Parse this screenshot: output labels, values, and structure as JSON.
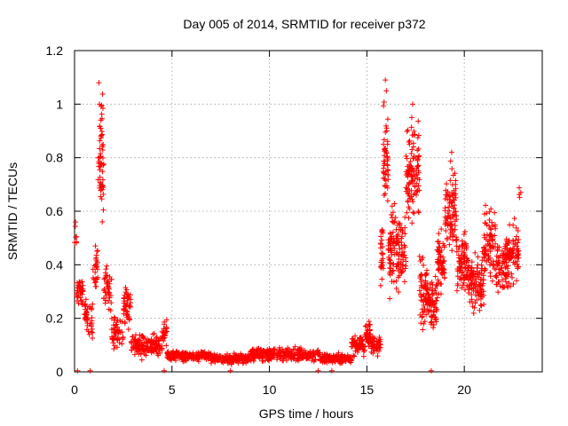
{
  "chart_data": {
    "type": "scatter",
    "title": "Day 005 of 2014, SRMTID for receiver p372",
    "xlabel": "GPS time / hours",
    "ylabel": "SRMTID / TECUs",
    "xlim": [
      0,
      24
    ],
    "ylim": [
      0,
      1.2
    ],
    "xticks": [
      0,
      5,
      10,
      15,
      20
    ],
    "yticks": [
      0,
      0.2,
      0.4,
      0.6,
      0.8,
      1,
      1.2
    ],
    "ytick_labels": [
      "0",
      "0.2",
      "0.4",
      "0.6",
      "0.8",
      "1",
      "1.2"
    ],
    "grid": true,
    "legend": "none",
    "marker": "+",
    "series_color": "#ff0000",
    "segments": [
      {
        "t0": 0.0,
        "t1": 0.1,
        "count": 6,
        "base": 0.5,
        "spread": 0.08
      },
      {
        "t0": 0.1,
        "t1": 0.45,
        "count": 40,
        "base": 0.3,
        "spread": 0.09
      },
      {
        "t0": 0.45,
        "t1": 0.95,
        "count": 40,
        "base": 0.2,
        "spread": 0.1
      },
      {
        "t0": 0.95,
        "t1": 1.2,
        "count": 25,
        "base": 0.4,
        "spread": 0.18
      },
      {
        "t0": 1.2,
        "t1": 1.5,
        "count": 55,
        "base": 0.78,
        "spread": 0.3
      },
      {
        "t0": 1.5,
        "t1": 1.9,
        "count": 40,
        "base": 0.3,
        "spread": 0.12
      },
      {
        "t0": 1.9,
        "t1": 2.5,
        "count": 50,
        "base": 0.15,
        "spread": 0.08
      },
      {
        "t0": 2.5,
        "t1": 2.9,
        "count": 45,
        "base": 0.25,
        "spread": 0.12
      },
      {
        "t0": 2.9,
        "t1": 4.5,
        "count": 160,
        "base": 0.1,
        "spread": 0.06
      },
      {
        "t0": 4.5,
        "t1": 4.75,
        "count": 25,
        "base": 0.14,
        "spread": 0.07
      },
      {
        "t0": 4.75,
        "t1": 7.0,
        "count": 200,
        "base": 0.06,
        "spread": 0.025
      },
      {
        "t0": 7.0,
        "t1": 9.0,
        "count": 170,
        "base": 0.05,
        "spread": 0.025
      },
      {
        "t0": 9.0,
        "t1": 11.8,
        "count": 250,
        "base": 0.065,
        "spread": 0.035
      },
      {
        "t0": 11.8,
        "t1": 12.6,
        "count": 50,
        "base": 0.06,
        "spread": 0.03
      },
      {
        "t0": 12.6,
        "t1": 14.2,
        "count": 150,
        "base": 0.05,
        "spread": 0.025
      },
      {
        "t0": 14.2,
        "t1": 14.9,
        "count": 70,
        "base": 0.1,
        "spread": 0.05
      },
      {
        "t0": 14.9,
        "t1": 15.2,
        "count": 40,
        "base": 0.14,
        "spread": 0.06
      },
      {
        "t0": 15.2,
        "t1": 15.7,
        "count": 45,
        "base": 0.1,
        "spread": 0.05
      },
      {
        "t0": 15.7,
        "t1": 15.85,
        "count": 25,
        "base": 0.45,
        "spread": 0.2
      },
      {
        "t0": 15.85,
        "t1": 16.1,
        "count": 50,
        "base": 0.8,
        "spread": 0.25
      },
      {
        "t0": 16.1,
        "t1": 16.5,
        "count": 60,
        "base": 0.45,
        "spread": 0.2
      },
      {
        "t0": 16.5,
        "t1": 17.0,
        "count": 70,
        "base": 0.45,
        "spread": 0.18
      },
      {
        "t0": 17.0,
        "t1": 17.7,
        "count": 110,
        "base": 0.75,
        "spread": 0.25
      },
      {
        "t0": 17.7,
        "t1": 18.1,
        "count": 60,
        "base": 0.3,
        "spread": 0.18
      },
      {
        "t0": 18.1,
        "t1": 18.6,
        "count": 70,
        "base": 0.25,
        "spread": 0.12
      },
      {
        "t0": 18.6,
        "t1": 19.0,
        "count": 65,
        "base": 0.4,
        "spread": 0.15
      },
      {
        "t0": 19.0,
        "t1": 19.6,
        "count": 90,
        "base": 0.6,
        "spread": 0.22
      },
      {
        "t0": 19.6,
        "t1": 20.2,
        "count": 80,
        "base": 0.4,
        "spread": 0.15
      },
      {
        "t0": 20.2,
        "t1": 21.0,
        "count": 110,
        "base": 0.33,
        "spread": 0.15
      },
      {
        "t0": 21.0,
        "t1": 21.6,
        "count": 80,
        "base": 0.48,
        "spread": 0.18
      },
      {
        "t0": 21.6,
        "t1": 22.3,
        "count": 95,
        "base": 0.4,
        "spread": 0.15
      },
      {
        "t0": 22.3,
        "t1": 22.8,
        "count": 60,
        "base": 0.45,
        "spread": 0.15
      },
      {
        "t0": 22.8,
        "t1": 22.85,
        "count": 3,
        "base": 0.67,
        "spread": 0.03
      }
    ],
    "peaks": [
      {
        "t": 1.25,
        "y": 1.08
      },
      {
        "t": 1.28,
        "y": 1.0
      },
      {
        "t": 1.35,
        "y": 0.94
      },
      {
        "t": 15.95,
        "y": 1.09
      },
      {
        "t": 16.0,
        "y": 1.05
      },
      {
        "t": 17.35,
        "y": 1.0
      },
      {
        "t": 17.3,
        "y": 0.95
      },
      {
        "t": 19.35,
        "y": 0.82
      },
      {
        "t": 22.9,
        "y": 0.67
      },
      {
        "t": 0.05,
        "y": 0.56
      }
    ],
    "zero_points": [
      0.15,
      0.8,
      4.6,
      8.0,
      12.5,
      13.2,
      18.3
    ]
  }
}
